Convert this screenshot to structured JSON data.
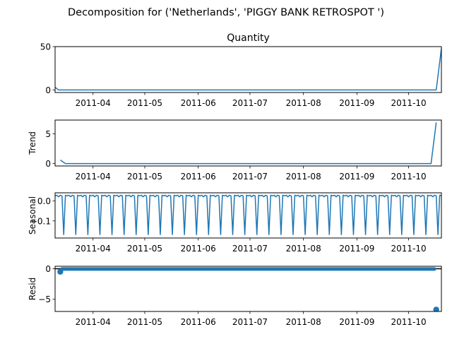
{
  "figure": {
    "suptitle": "Decomposition for ('Netherlands', 'PIGGY BANK RETROSPOT ')"
  },
  "colors": {
    "line": "#1f77b4",
    "axis": "#000000",
    "background": "#ffffff"
  },
  "chart_data": [
    {
      "type": "line",
      "title": "Quantity",
      "ylabel": "",
      "x_range": [
        "2011-03-10",
        "2011-10-20"
      ],
      "x_ticks": [
        "2011-04",
        "2011-05",
        "2011-06",
        "2011-07",
        "2011-08",
        "2011-09",
        "2011-10"
      ],
      "ylim": [
        -3,
        50
      ],
      "y_ticks": [
        0,
        50
      ],
      "series": [
        {
          "x": [
            "2011-03-10",
            "2011-03-12",
            "2011-10-17",
            "2011-10-20"
          ],
          "values": [
            3,
            0,
            0,
            48
          ]
        }
      ]
    },
    {
      "type": "line",
      "title": "",
      "ylabel": "Trend",
      "x_range": [
        "2011-03-10",
        "2011-10-20"
      ],
      "x_ticks": [
        "2011-04",
        "2011-05",
        "2011-06",
        "2011-07",
        "2011-08",
        "2011-09",
        "2011-10"
      ],
      "ylim": [
        -0.4,
        7.3
      ],
      "y_ticks": [
        0,
        5
      ],
      "series": [
        {
          "x": [
            "2011-03-13",
            "2011-03-16",
            "2011-10-14",
            "2011-10-17"
          ],
          "values": [
            0.6,
            0,
            0,
            6.9
          ]
        }
      ]
    },
    {
      "type": "line",
      "title": "",
      "ylabel": "Seasonal",
      "x_range": [
        "2011-03-10",
        "2011-10-20"
      ],
      "x_ticks": [
        "2011-04",
        "2011-05",
        "2011-06",
        "2011-07",
        "2011-08",
        "2011-09",
        "2011-10"
      ],
      "ylim": [
        -0.185,
        0.04
      ],
      "y_ticks": [
        0.0,
        -0.1
      ],
      "y_tick_labels": [
        "0.0",
        "−0.1"
      ],
      "seasonal_pattern": {
        "period_days": 7,
        "start": "2011-03-10",
        "weekly_values": [
          0.025,
          0.028,
          0.02,
          0.028,
          0.025,
          -0.168,
          0.028
        ]
      }
    },
    {
      "type": "scatter",
      "title": "",
      "ylabel": "Resid",
      "x_range": [
        "2011-03-10",
        "2011-10-20"
      ],
      "x_ticks": [
        "2011-04",
        "2011-05",
        "2011-06",
        "2011-07",
        "2011-08",
        "2011-09",
        "2011-10"
      ],
      "ylim": [
        -7.0,
        0.4
      ],
      "y_ticks": [
        0,
        -5
      ],
      "y_tick_labels": [
        "0",
        "−5"
      ],
      "zero_line": true,
      "band": {
        "start": "2011-03-13",
        "end": "2011-10-17",
        "value": -0.05
      },
      "points": [
        {
          "x": "2011-03-13",
          "y": -0.5
        },
        {
          "x": "2011-10-17",
          "y": -6.7
        }
      ]
    }
  ]
}
